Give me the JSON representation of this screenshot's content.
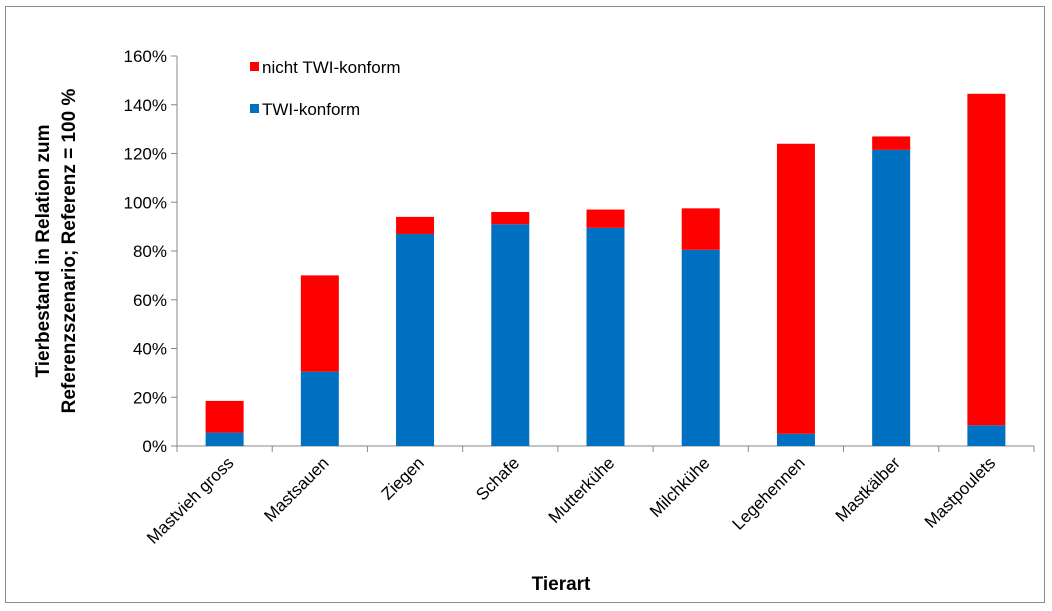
{
  "chart_data": {
    "type": "bar",
    "stacked": true,
    "categories": [
      "Mastvieh gross",
      "Mastsauen",
      "Ziegen",
      "Schafe",
      "Mutterkühe",
      "Milchkühe",
      "Legehennen",
      "Mastkälber",
      "Mastpoulets"
    ],
    "series": [
      {
        "name": "TWI-konform",
        "color": "#0070C0",
        "values": [
          5.5,
          30.5,
          87,
          91,
          89.5,
          80.5,
          5,
          121.5,
          8.5
        ]
      },
      {
        "name": "nicht TWI-konform",
        "color": "#FF0000",
        "values": [
          13,
          39.5,
          7,
          5,
          7.5,
          17,
          119,
          5.5,
          136
        ]
      }
    ],
    "xlabel": "Tierart",
    "ylabel_lines": [
      "Tierbestand in Relation zum",
      "Referenzszenario; Referenz = 100 %"
    ],
    "ylim": [
      0,
      160
    ],
    "yticks": [
      "0%",
      "20%",
      "40%",
      "60%",
      "80%",
      "100%",
      "120%",
      "140%",
      "160%"
    ],
    "grid": false,
    "legend_position": "top-left",
    "legend_order": [
      "nicht TWI-konform",
      "TWI-konform"
    ]
  }
}
